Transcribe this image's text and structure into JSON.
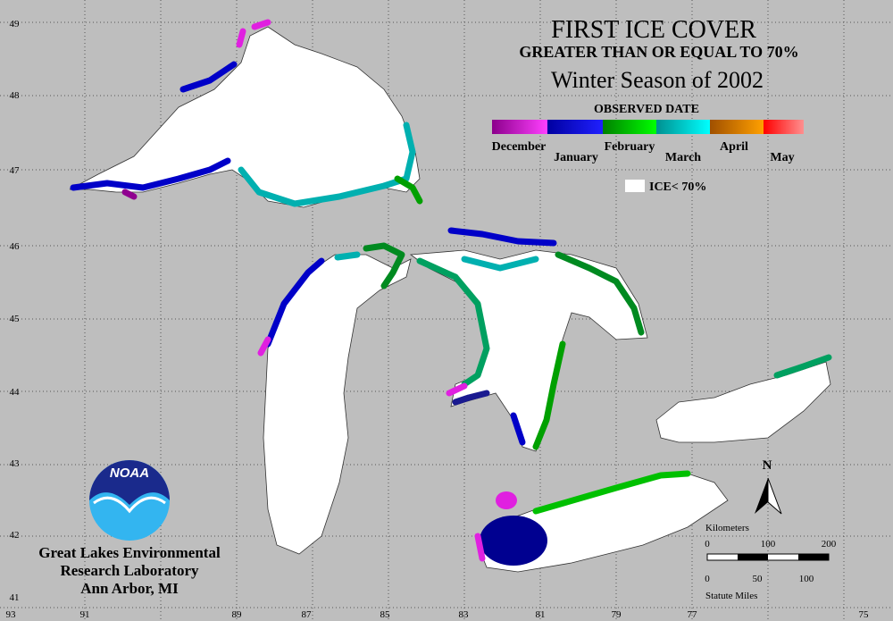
{
  "title": "FIRST ICE COVER",
  "subtitle": "GREATER THAN OR EQUAL TO 70%",
  "season": "Winter Season of 2002",
  "legend": {
    "title": "OBSERVED DATE",
    "months": [
      "December",
      "January",
      "February",
      "March",
      "April",
      "May"
    ],
    "below": "ICE< 70%"
  },
  "latitude_labels": [
    49,
    48,
    47,
    46,
    45,
    44,
    43,
    42,
    41
  ],
  "longitude_labels": [
    93,
    91,
    89,
    87,
    85,
    83,
    81,
    79,
    77,
    75
  ],
  "logo": "NOAA",
  "organization": [
    "Great Lakes Environmental",
    "Research Laboratory",
    "Ann Arbor, MI"
  ],
  "north": "N",
  "scale": {
    "km_label": "Kilometers",
    "km_ticks": [
      0,
      100,
      200
    ],
    "mi_ticks": [
      0,
      50,
      100
    ],
    "mi_label": "Statute Miles"
  }
}
